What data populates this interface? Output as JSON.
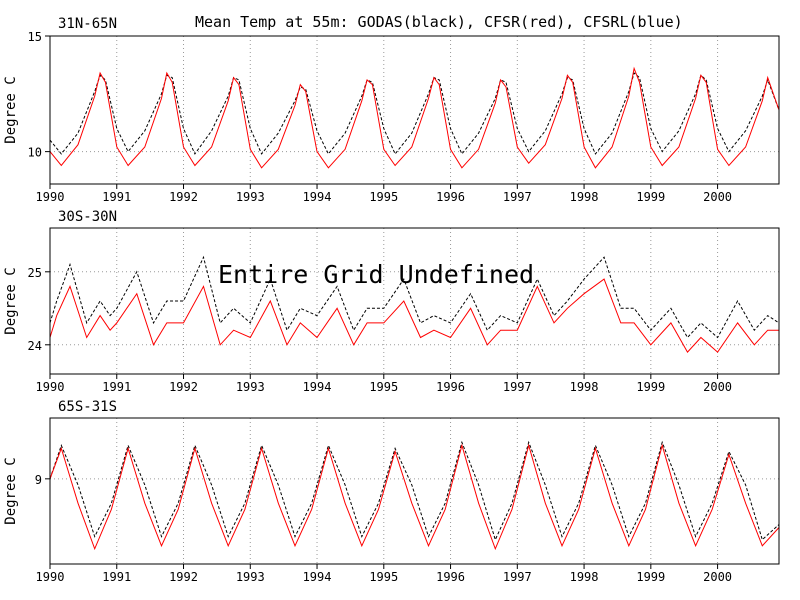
{
  "figure": {
    "title": "Mean Temp at 55m: GODAS(black), CFSR(red), CFSRL(blue)"
  },
  "chart_data": [
    {
      "type": "line",
      "panel_label": "31N-65N",
      "ylabel": "Degree C",
      "ylim": [
        8.6,
        15
      ],
      "yticks": [
        10,
        15
      ],
      "xlim": [
        1990,
        2000.92
      ],
      "xticks": [
        "1990",
        "1991",
        "1992",
        "1993",
        "1994",
        "1995",
        "1996",
        "1997",
        "1998",
        "1999",
        "2000"
      ],
      "grid": true,
      "series": [
        {
          "name": "GODAS",
          "color": "#000000",
          "style": "dashed",
          "x": [
            1990.0,
            1990.17,
            1990.42,
            1990.67,
            1990.75,
            1990.83,
            1991.0,
            1991.17,
            1991.42,
            1991.67,
            1991.75,
            1991.83,
            1992.0,
            1992.17,
            1992.42,
            1992.67,
            1992.75,
            1992.83,
            1993.0,
            1993.17,
            1993.42,
            1993.67,
            1993.75,
            1993.83,
            1994.0,
            1994.17,
            1994.42,
            1994.67,
            1994.75,
            1994.83,
            1995.0,
            1995.17,
            1995.42,
            1995.67,
            1995.75,
            1995.83,
            1996.0,
            1996.17,
            1996.42,
            1996.67,
            1996.75,
            1996.83,
            1997.0,
            1997.17,
            1997.42,
            1997.67,
            1997.75,
            1997.83,
            1998.0,
            1998.17,
            1998.42,
            1998.67,
            1998.75,
            1998.83,
            1999.0,
            1999.17,
            1999.42,
            1999.67,
            1999.75,
            1999.83,
            2000.0,
            2000.17,
            2000.42,
            2000.67,
            2000.75,
            2000.92
          ],
          "values": [
            10.5,
            9.9,
            10.8,
            12.6,
            13.3,
            13.1,
            11.0,
            10.0,
            10.9,
            12.5,
            13.3,
            13.2,
            11.0,
            9.9,
            10.9,
            12.4,
            13.2,
            13.1,
            11.0,
            9.9,
            10.8,
            12.2,
            12.8,
            12.7,
            10.9,
            9.9,
            10.8,
            12.4,
            13.1,
            13.0,
            11.0,
            9.9,
            10.8,
            12.5,
            13.2,
            13.1,
            11.0,
            9.9,
            10.8,
            12.3,
            13.1,
            13.0,
            11.0,
            10.0,
            10.9,
            12.5,
            13.2,
            13.1,
            11.0,
            9.9,
            10.8,
            12.6,
            13.4,
            13.2,
            11.0,
            10.0,
            10.9,
            12.5,
            13.3,
            13.1,
            11.0,
            10.0,
            10.9,
            12.4,
            13.1,
            11.8
          ]
        },
        {
          "name": "CFSR",
          "color": "#ff0000",
          "style": "solid",
          "x": [
            1990.0,
            1990.17,
            1990.42,
            1990.67,
            1990.75,
            1990.83,
            1991.0,
            1991.17,
            1991.42,
            1991.67,
            1991.75,
            1991.83,
            1992.0,
            1992.17,
            1992.42,
            1992.67,
            1992.75,
            1992.83,
            1993.0,
            1993.17,
            1993.42,
            1993.67,
            1993.75,
            1993.83,
            1994.0,
            1994.17,
            1994.42,
            1994.67,
            1994.75,
            1994.83,
            1995.0,
            1995.17,
            1995.42,
            1995.67,
            1995.75,
            1995.83,
            1996.0,
            1996.17,
            1996.42,
            1996.67,
            1996.75,
            1996.83,
            1997.0,
            1997.17,
            1997.42,
            1997.67,
            1997.75,
            1997.83,
            1998.0,
            1998.17,
            1998.42,
            1998.67,
            1998.75,
            1998.83,
            1999.0,
            1999.17,
            1999.42,
            1999.67,
            1999.75,
            1999.83,
            2000.0,
            2000.17,
            2000.42,
            2000.67,
            2000.75,
            2000.92
          ],
          "values": [
            10.0,
            9.4,
            10.3,
            12.4,
            13.4,
            13.0,
            10.2,
            9.4,
            10.2,
            12.3,
            13.4,
            13.0,
            10.2,
            9.4,
            10.2,
            12.2,
            13.2,
            12.9,
            10.1,
            9.3,
            10.1,
            12.0,
            12.9,
            12.6,
            10.0,
            9.3,
            10.1,
            12.2,
            13.1,
            12.9,
            10.1,
            9.4,
            10.2,
            12.3,
            13.2,
            12.9,
            10.1,
            9.3,
            10.1,
            12.1,
            13.1,
            12.8,
            10.2,
            9.5,
            10.3,
            12.3,
            13.3,
            13.0,
            10.2,
            9.3,
            10.2,
            12.4,
            13.6,
            13.0,
            10.2,
            9.4,
            10.2,
            12.3,
            13.3,
            13.0,
            10.1,
            9.4,
            10.2,
            12.2,
            13.2,
            11.8
          ]
        }
      ]
    },
    {
      "type": "line",
      "panel_label": "30S-30N",
      "ylabel": "Degree C",
      "ylim": [
        23.6,
        25.6
      ],
      "yticks": [
        24,
        25
      ],
      "xlim": [
        1990,
        2000.92
      ],
      "xticks": [
        "1990",
        "1991",
        "1992",
        "1993",
        "1994",
        "1995",
        "1996",
        "1997",
        "1998",
        "1999",
        "2000"
      ],
      "grid": true,
      "annotation": "Entire Grid Undefined",
      "series": [
        {
          "name": "GODAS",
          "color": "#000000",
          "style": "dashed",
          "x": [
            1990.0,
            1990.1,
            1990.3,
            1990.55,
            1990.75,
            1990.9,
            1991.0,
            1991.3,
            1991.55,
            1991.75,
            1992.0,
            1992.3,
            1992.55,
            1992.75,
            1993.0,
            1993.3,
            1993.55,
            1993.75,
            1994.0,
            1994.3,
            1994.55,
            1994.75,
            1995.0,
            1995.3,
            1995.55,
            1995.75,
            1996.0,
            1996.3,
            1996.55,
            1996.75,
            1997.0,
            1997.3,
            1997.55,
            1997.75,
            1998.0,
            1998.3,
            1998.55,
            1998.75,
            1999.0,
            1999.3,
            1999.55,
            1999.75,
            2000.0,
            2000.3,
            2000.55,
            2000.75,
            2000.92
          ],
          "values": [
            24.3,
            24.6,
            25.1,
            24.3,
            24.6,
            24.4,
            24.5,
            25.0,
            24.3,
            24.6,
            24.6,
            25.2,
            24.3,
            24.5,
            24.3,
            24.9,
            24.2,
            24.5,
            24.4,
            24.8,
            24.2,
            24.5,
            24.5,
            24.9,
            24.3,
            24.4,
            24.3,
            24.7,
            24.2,
            24.4,
            24.3,
            24.9,
            24.4,
            24.6,
            24.9,
            25.2,
            24.5,
            24.5,
            24.2,
            24.5,
            24.1,
            24.3,
            24.1,
            24.6,
            24.2,
            24.4,
            24.3
          ]
        },
        {
          "name": "CFSR",
          "color": "#ff0000",
          "style": "solid",
          "x": [
            1990.0,
            1990.1,
            1990.3,
            1990.55,
            1990.75,
            1990.9,
            1991.0,
            1991.3,
            1991.55,
            1991.75,
            1992.0,
            1992.3,
            1992.55,
            1992.75,
            1993.0,
            1993.3,
            1993.55,
            1993.75,
            1994.0,
            1994.3,
            1994.55,
            1994.75,
            1995.0,
            1995.3,
            1995.55,
            1995.75,
            1996.0,
            1996.3,
            1996.55,
            1996.75,
            1997.0,
            1997.3,
            1997.55,
            1997.75,
            1998.0,
            1998.3,
            1998.55,
            1998.75,
            1999.0,
            1999.3,
            1999.55,
            1999.75,
            2000.0,
            2000.3,
            2000.55,
            2000.75,
            2000.92
          ],
          "values": [
            24.1,
            24.4,
            24.8,
            24.1,
            24.4,
            24.2,
            24.3,
            24.7,
            24.0,
            24.3,
            24.3,
            24.8,
            24.0,
            24.2,
            24.1,
            24.6,
            24.0,
            24.3,
            24.1,
            24.5,
            24.0,
            24.3,
            24.3,
            24.6,
            24.1,
            24.2,
            24.1,
            24.5,
            24.0,
            24.2,
            24.2,
            24.8,
            24.3,
            24.5,
            24.7,
            24.9,
            24.3,
            24.3,
            24.0,
            24.3,
            23.9,
            24.1,
            23.9,
            24.3,
            24.0,
            24.2,
            24.2
          ]
        }
      ]
    },
    {
      "type": "line",
      "panel_label": "65S-31S",
      "ylabel": "Degree C",
      "ylim": [
        7.6,
        10.0
      ],
      "yticks": [
        9
      ],
      "xlim": [
        1990,
        2000.92
      ],
      "xticks": [
        "1990",
        "1991",
        "1992",
        "1993",
        "1994",
        "1995",
        "1996",
        "1997",
        "1998",
        "1999",
        "2000"
      ],
      "grid": true,
      "series": [
        {
          "name": "GODAS",
          "color": "#000000",
          "style": "dashed",
          "x": [
            1990.0,
            1990.17,
            1990.42,
            1990.67,
            1990.92,
            1991.17,
            1991.42,
            1991.67,
            1991.92,
            1992.17,
            1992.42,
            1992.67,
            1992.92,
            1993.17,
            1993.42,
            1993.67,
            1993.92,
            1994.17,
            1994.42,
            1994.67,
            1994.92,
            1995.17,
            1995.42,
            1995.67,
            1995.92,
            1996.17,
            1996.42,
            1996.67,
            1996.92,
            1997.17,
            1997.42,
            1997.67,
            1997.92,
            1998.17,
            1998.42,
            1998.67,
            1998.92,
            1999.17,
            1999.42,
            1999.67,
            1999.92,
            2000.17,
            2000.42,
            2000.67,
            2000.92
          ],
          "values": [
            9.0,
            9.55,
            8.9,
            8.05,
            8.6,
            9.55,
            8.9,
            8.05,
            8.6,
            9.55,
            8.9,
            8.05,
            8.6,
            9.55,
            8.9,
            8.05,
            8.6,
            9.55,
            8.9,
            8.05,
            8.6,
            9.5,
            8.9,
            8.05,
            8.6,
            9.6,
            8.9,
            8.0,
            8.6,
            9.6,
            8.9,
            8.05,
            8.6,
            9.55,
            8.9,
            8.05,
            8.6,
            9.6,
            8.9,
            8.05,
            8.6,
            9.45,
            8.9,
            8.0,
            8.25
          ]
        },
        {
          "name": "CFSR",
          "color": "#ff0000",
          "style": "solid",
          "x": [
            1990.0,
            1990.17,
            1990.42,
            1990.67,
            1990.92,
            1991.17,
            1991.42,
            1991.67,
            1991.92,
            1992.17,
            1992.42,
            1992.67,
            1992.92,
            1993.17,
            1993.42,
            1993.67,
            1993.92,
            1994.17,
            1994.42,
            1994.67,
            1994.92,
            1995.17,
            1995.42,
            1995.67,
            1995.92,
            1996.17,
            1996.42,
            1996.67,
            1996.92,
            1997.17,
            1997.42,
            1997.67,
            1997.92,
            1998.17,
            1998.42,
            1998.67,
            1998.92,
            1999.17,
            1999.42,
            1999.67,
            1999.92,
            2000.17,
            2000.42,
            2000.67,
            2000.92
          ],
          "values": [
            9.0,
            9.5,
            8.6,
            7.85,
            8.5,
            9.5,
            8.6,
            7.9,
            8.5,
            9.5,
            8.6,
            7.9,
            8.5,
            9.5,
            8.6,
            7.9,
            8.5,
            9.5,
            8.6,
            7.9,
            8.5,
            9.45,
            8.6,
            7.9,
            8.5,
            9.55,
            8.6,
            7.85,
            8.5,
            9.55,
            8.6,
            7.9,
            8.5,
            9.5,
            8.6,
            7.9,
            8.5,
            9.55,
            8.6,
            7.9,
            8.5,
            9.4,
            8.6,
            7.9,
            8.2
          ]
        }
      ]
    }
  ]
}
